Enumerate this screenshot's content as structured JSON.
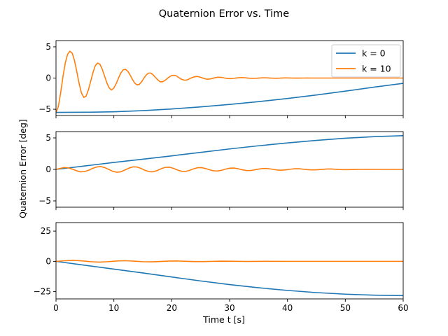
{
  "chart_data": {
    "type": "line",
    "title": "Quaternion Error vs. Time",
    "xlabel": "Time t [s]",
    "ylabel": "Quaternion Error [deg]",
    "xlim": [
      0,
      60
    ],
    "xticks": [
      0,
      10,
      20,
      30,
      40,
      50,
      60
    ],
    "grid": false,
    "legend": {
      "placement": "top-right",
      "panel": 0,
      "entries": [
        "k = 0",
        "k = 10"
      ]
    },
    "colors": {
      "k = 0": "#1f77b4",
      "k = 10": "#ff7f0e"
    },
    "panels": [
      {
        "ylim": [
          -6,
          6
        ],
        "yticks": [
          -5,
          0,
          5
        ],
        "series": [
          {
            "name": "k = 0",
            "x": [
              0,
              5,
              10,
              15,
              20,
              25,
              30,
              35,
              40,
              45,
              50,
              55,
              60
            ],
            "y": [
              -5.5,
              -5.48,
              -5.4,
              -5.22,
              -4.95,
              -4.62,
              -4.23,
              -3.78,
              -3.27,
              -2.71,
              -2.1,
              -1.45,
              -0.85
            ]
          },
          {
            "name": "k = 10",
            "x": [
              0,
              0.4,
              0.8,
              1.2,
              1.6,
              2.0,
              2.4,
              2.8,
              3.2,
              3.6,
              4.0,
              4.4,
              4.8,
              5.2,
              5.6,
              6.0,
              6.4,
              6.8,
              7.2,
              7.6,
              8.0,
              8.4,
              8.8,
              9.2,
              9.6,
              10.0,
              10.4,
              10.8,
              11.2,
              11.6,
              12.0,
              12.4,
              12.8,
              13.2,
              13.6,
              14.0,
              14.4,
              14.8,
              15.2,
              15.6,
              16.0,
              16.4,
              16.8,
              17.2,
              17.6,
              18.0,
              18.4,
              18.8,
              19.2,
              19.6,
              20.0,
              20.4,
              20.8,
              21.2,
              21.6,
              22.0,
              22.4,
              22.8,
              23.2,
              23.6,
              24.0,
              24.4,
              24.8,
              25.2,
              25.6,
              26.0,
              26.4,
              26.8,
              27.2,
              27.6,
              28.0,
              28.4,
              28.8,
              29.2,
              29.6,
              30.0,
              30.4,
              30.8,
              31.2,
              31.6,
              32.0,
              32.4,
              32.8,
              33.2,
              33.6,
              34.0,
              34.4,
              34.8,
              35.2,
              35.6,
              36.0,
              36.4,
              36.8,
              37.2,
              37.6,
              38.0,
              38.4,
              38.8,
              39.2,
              39.6,
              40.0,
              40.4,
              40.8,
              41.2,
              41.6,
              42.0,
              42.4,
              42.8,
              43.2,
              43.6,
              44.0,
              44.4,
              44.8,
              45.2,
              45.6,
              46.0,
              46.4,
              46.8,
              47.2,
              47.6,
              48.0,
              48.4,
              48.8,
              49.2,
              49.6,
              50.0,
              51,
              52,
              53,
              54,
              55,
              56,
              57,
              58,
              59,
              60
            ],
            "y": [
              -5.5,
              -4.6,
              -2.4,
              0.2,
              2.4,
              3.8,
              4.3,
              4.0,
              2.8,
              1.0,
              -0.9,
              -2.4,
              -3.1,
              -2.9,
              -1.9,
              -0.5,
              0.9,
              2.0,
              2.4,
              2.2,
              1.4,
              0.3,
              -0.8,
              -1.6,
              -1.9,
              -1.6,
              -0.9,
              0.0,
              0.8,
              1.3,
              1.4,
              1.1,
              0.5,
              -0.2,
              -0.8,
              -1.1,
              -1.0,
              -0.6,
              0.0,
              0.5,
              0.8,
              0.8,
              0.5,
              0.1,
              -0.3,
              -0.6,
              -0.6,
              -0.4,
              -0.1,
              0.2,
              0.4,
              0.45,
              0.35,
              0.1,
              -0.15,
              -0.3,
              -0.35,
              -0.25,
              -0.05,
              0.1,
              0.22,
              0.25,
              0.18,
              0.05,
              -0.08,
              -0.17,
              -0.18,
              -0.12,
              -0.02,
              0.08,
              0.13,
              0.12,
              0.07,
              0.0,
              -0.06,
              -0.09,
              -0.08,
              -0.04,
              0.01,
              0.05,
              0.07,
              0.06,
              0.03,
              -0.01,
              -0.04,
              -0.05,
              -0.04,
              -0.02,
              0.01,
              0.03,
              0.04,
              0.03,
              0.01,
              -0.01,
              -0.02,
              -0.03,
              -0.02,
              -0.01,
              0.01,
              0.02,
              0.02,
              0.01,
              0.0,
              -0.01,
              -0.01,
              -0.01,
              0.0,
              0.0,
              0.01,
              0.01,
              0.0,
              0.0,
              0.0,
              0.0,
              0.0,
              0.0,
              0.0,
              0.0,
              0.0,
              0.0,
              0.0,
              0.0,
              0.0,
              0.0,
              0.0,
              0.0,
              0.0,
              0.0,
              0.0,
              0.0,
              0.0,
              0.0,
              0.0,
              0.0,
              0.0,
              0.0
            ]
          }
        ]
      },
      {
        "ylim": [
          -6,
          6
        ],
        "yticks": [
          -5,
          0,
          5
        ],
        "series": [
          {
            "name": "k = 0",
            "x": [
              0,
              5,
              10,
              15,
              20,
              25,
              30,
              35,
              40,
              45,
              50,
              55,
              60
            ],
            "y": [
              0.0,
              0.55,
              1.1,
              1.62,
              2.15,
              2.7,
              3.25,
              3.75,
              4.2,
              4.6,
              4.95,
              5.2,
              5.35
            ]
          },
          {
            "name": "k = 10",
            "x": [
              0,
              0.7,
              1.4,
              2.1,
              2.8,
              3.5,
              4.2,
              4.9,
              5.6,
              6.3,
              7.0,
              7.7,
              8.4,
              9.1,
              9.8,
              10.5,
              11.2,
              11.9,
              12.6,
              13.3,
              14.0,
              14.7,
              15.4,
              16.1,
              16.8,
              17.5,
              18.2,
              18.9,
              19.6,
              20.3,
              21.0,
              21.7,
              22.4,
              23.1,
              23.8,
              24.5,
              25.2,
              25.9,
              26.6,
              27.3,
              28.0,
              28.7,
              29.4,
              30.1,
              30.8,
              31.5,
              32.2,
              32.9,
              33.6,
              34.3,
              35.0,
              35.7,
              36.4,
              37.1,
              37.8,
              38.5,
              39.2,
              39.9,
              40.6,
              41.3,
              42.0,
              42.7,
              43.4,
              44.1,
              44.8,
              45.5,
              46.2,
              46.9,
              47.6,
              48.3,
              49.0,
              49.7,
              50.4,
              52,
              54,
              56,
              58,
              60
            ],
            "y": [
              0.0,
              0.15,
              0.3,
              0.25,
              0.05,
              -0.2,
              -0.38,
              -0.35,
              -0.15,
              0.15,
              0.38,
              0.45,
              0.3,
              0.0,
              -0.3,
              -0.45,
              -0.38,
              -0.1,
              0.2,
              0.4,
              0.38,
              0.15,
              -0.15,
              -0.35,
              -0.38,
              -0.18,
              0.12,
              0.32,
              0.35,
              0.17,
              -0.1,
              -0.3,
              -0.32,
              -0.15,
              0.1,
              0.27,
              0.28,
              0.12,
              -0.08,
              -0.23,
              -0.25,
              -0.12,
              0.07,
              0.2,
              0.21,
              0.1,
              -0.06,
              -0.17,
              -0.18,
              -0.08,
              0.05,
              0.14,
              0.15,
              0.07,
              -0.04,
              -0.12,
              -0.12,
              -0.05,
              0.04,
              0.1,
              0.1,
              0.04,
              -0.03,
              -0.08,
              -0.08,
              -0.03,
              0.02,
              0.06,
              0.06,
              0.02,
              -0.02,
              -0.04,
              -0.03,
              0.0,
              0.01,
              0.0,
              0.0,
              0.0
            ]
          }
        ]
      },
      {
        "ylim": [
          -31,
          32
        ],
        "yticks": [
          -25,
          0,
          25
        ],
        "series": [
          {
            "name": "k = 0",
            "x": [
              0,
              5,
              10,
              15,
              20,
              25,
              30,
              35,
              40,
              45,
              50,
              55,
              60
            ],
            "y": [
              0.0,
              -3.2,
              -6.4,
              -9.6,
              -12.9,
              -16.2,
              -19.2,
              -21.8,
              -24.0,
              -25.8,
              -27.1,
              -27.9,
              -28.3
            ]
          },
          {
            "name": "k = 10",
            "x": [
              0,
              1.5,
              3,
              4.5,
              6,
              7.5,
              9,
              10.5,
              12,
              13.5,
              15,
              16.5,
              18,
              19.5,
              21,
              22.5,
              24,
              25.5,
              27,
              28.5,
              30,
              33,
              36,
              40,
              45,
              50,
              55,
              60
            ],
            "y": [
              0.0,
              0.5,
              0.8,
              0.4,
              -0.3,
              -0.6,
              -0.3,
              0.3,
              0.5,
              0.2,
              -0.3,
              -0.4,
              -0.1,
              0.25,
              0.3,
              0.05,
              -0.2,
              -0.2,
              0.0,
              0.15,
              0.1,
              -0.08,
              0.05,
              0.0,
              0.0,
              0.0,
              0.0,
              0.0
            ]
          }
        ]
      }
    ]
  }
}
